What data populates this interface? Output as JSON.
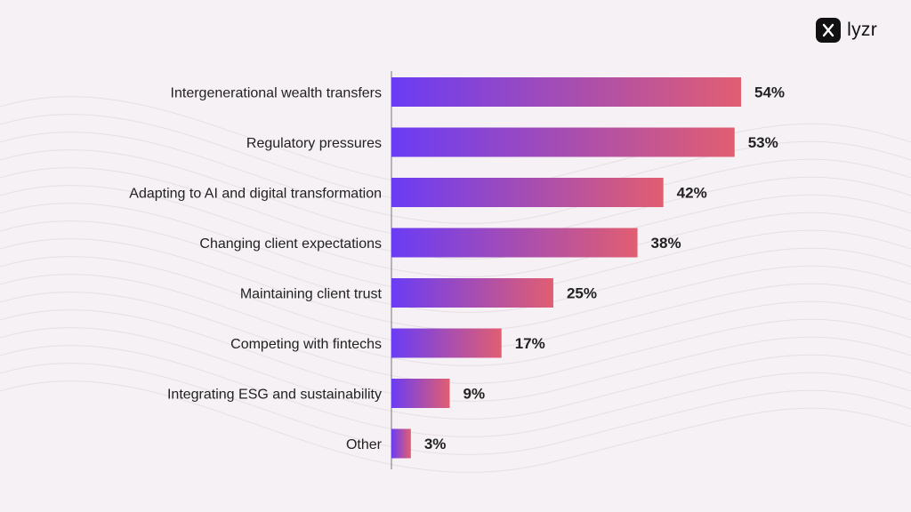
{
  "brand": {
    "name": "lyzr"
  },
  "colors": {
    "bar_start": "#6a3cf5",
    "bar_end": "#e15e71",
    "background": "#f6f1f4",
    "axis": "#777777",
    "text": "#222222"
  },
  "chart_data": {
    "type": "bar",
    "orientation": "horizontal",
    "categories": [
      "Intergenerational wealth transfers",
      "Regulatory pressures",
      "Adapting to AI and digital transformation",
      "Changing client expectations",
      "Maintaining client trust",
      "Competing with fintechs",
      "Integrating ESG and sustainability",
      "Other"
    ],
    "values": [
      54,
      53,
      42,
      38,
      25,
      17,
      9,
      3
    ],
    "value_labels": [
      "54%",
      "53%",
      "42%",
      "38%",
      "25%",
      "17%",
      "9%",
      "3%"
    ],
    "unit": "%",
    "xlim": [
      0,
      54
    ],
    "grid": false,
    "legend": "none"
  }
}
